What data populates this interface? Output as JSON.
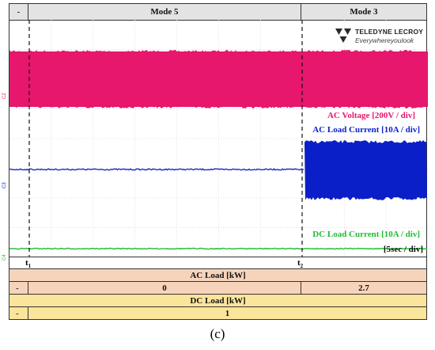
{
  "mode_bar": {
    "left": "-",
    "mode_a": "Mode 5",
    "mode_b": "Mode 3"
  },
  "logo": {
    "brand": "TELEDYNE LECROY",
    "tagline": "Everywhereyoulook"
  },
  "chart_data": {
    "type": "line",
    "series": [
      {
        "name": "AC Voltage [200V / div]",
        "color": "#e6176c",
        "channel": "C2"
      },
      {
        "name": "AC Load Current [10A / div]",
        "color": "#0b1fc8",
        "channel": "C3"
      },
      {
        "name": "DC Load Current [10A / div]",
        "color": "#22bb33",
        "channel": "C4"
      }
    ],
    "time_scale": "[5sec / div]",
    "markers": [
      "t",
      "t"
    ],
    "marker_subs": [
      "1",
      "2"
    ],
    "grid": true
  },
  "ac_load": {
    "title": "AC Load [kW]",
    "dash": "-",
    "value_a": "0",
    "value_b": "2.7"
  },
  "dc_load": {
    "title": "DC Load [kW]",
    "dash": "-",
    "value": "1"
  },
  "caption": "(c)"
}
